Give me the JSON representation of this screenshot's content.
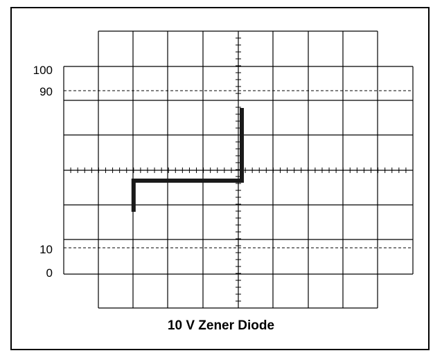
{
  "figure": {
    "caption": "10 V Zener Diode",
    "reference_labels": {
      "top_100": "100",
      "top_90": "90",
      "bottom_10": "10",
      "bottom_0": "0"
    }
  },
  "trace": {
    "description_units": "screen divisions from center (x right, y up)",
    "points": [
      [
        -3.0,
        -1.2
      ],
      [
        -3.0,
        -0.3
      ],
      [
        0.1,
        -0.3
      ],
      [
        0.1,
        1.8
      ]
    ]
  },
  "colors": {
    "graticule": "#000000",
    "trace": "#1a1a1a",
    "background": "#ffffff"
  }
}
